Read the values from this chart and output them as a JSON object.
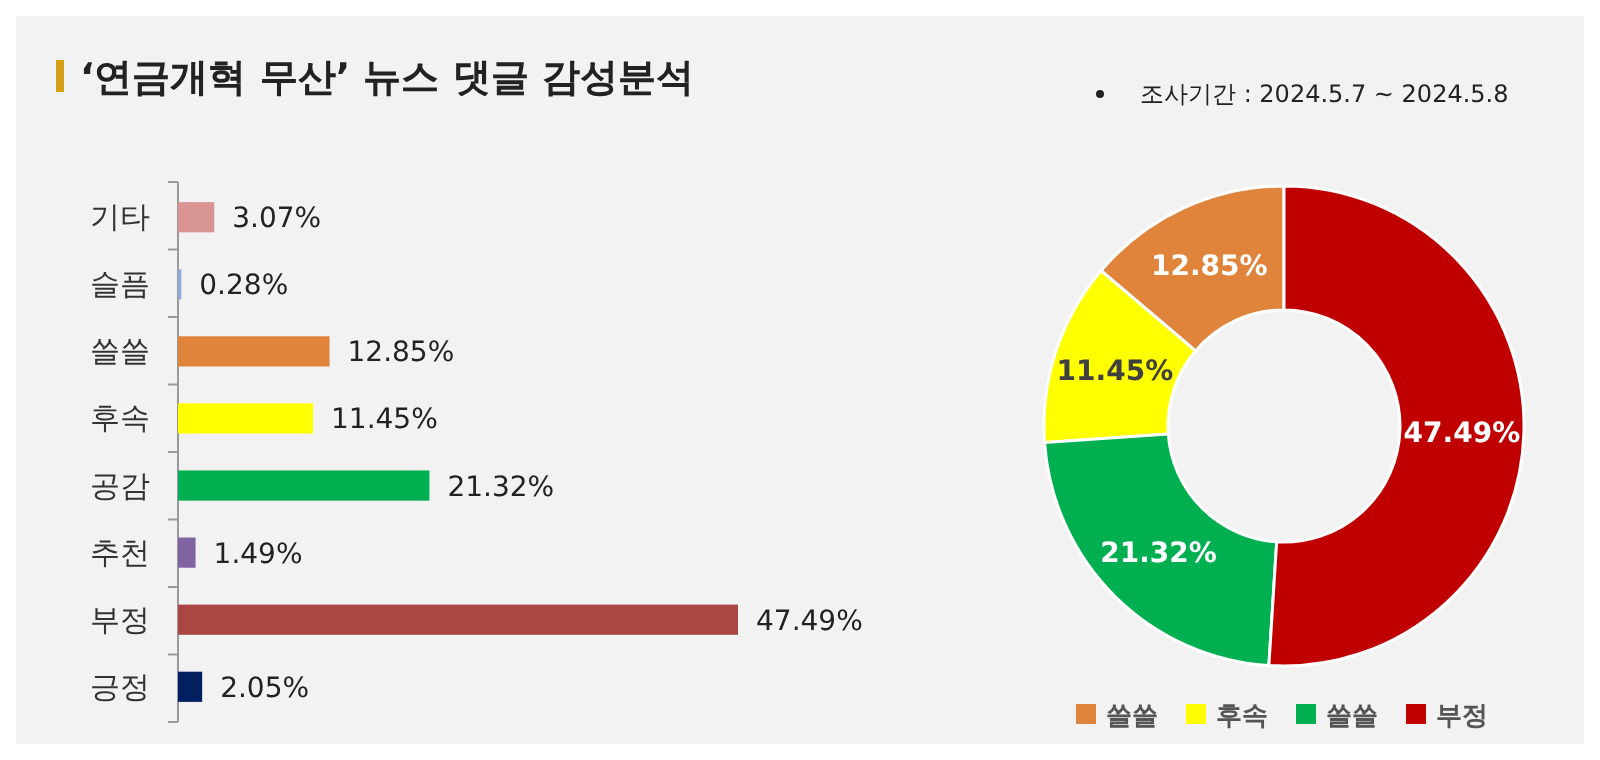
{
  "chart_data": [
    {
      "type": "bar",
      "orientation": "horizontal",
      "title": "‘연금개혁 무산’ 뉴스 댓글 감성분석",
      "categories": [
        "기타",
        "슬픔",
        "쓸쓸",
        "후속",
        "공감",
        "추천",
        "부정",
        "긍정"
      ],
      "values": [
        3.07,
        0.28,
        12.85,
        11.45,
        21.32,
        1.49,
        47.49,
        2.05
      ],
      "colors": [
        "#d99594",
        "#8eaadb",
        "#e0843c",
        "#ffff00",
        "#00b050",
        "#8064a2",
        "#aa4743",
        "#002060"
      ],
      "value_labels": [
        "3.07%",
        "0.28%",
        "12.85%",
        "11.45%",
        "21.32%",
        "1.49%",
        "47.49%",
        "2.05%"
      ]
    },
    {
      "type": "donut",
      "annotations": [
        "조사기간 : 2024.5.7 ~ 2024.5.8"
      ],
      "categories": [
        "쓸쓸",
        "후속",
        "쓸쓸",
        "부정"
      ],
      "values": [
        12.85,
        11.45,
        21.32,
        47.49
      ],
      "colors": [
        "#e0843c",
        "#ffff00",
        "#00b050",
        "#c00000"
      ],
      "value_labels": [
        "12.85%",
        "11.45%",
        "21.32%",
        "47.49%"
      ],
      "legend": "bottom"
    }
  ]
}
